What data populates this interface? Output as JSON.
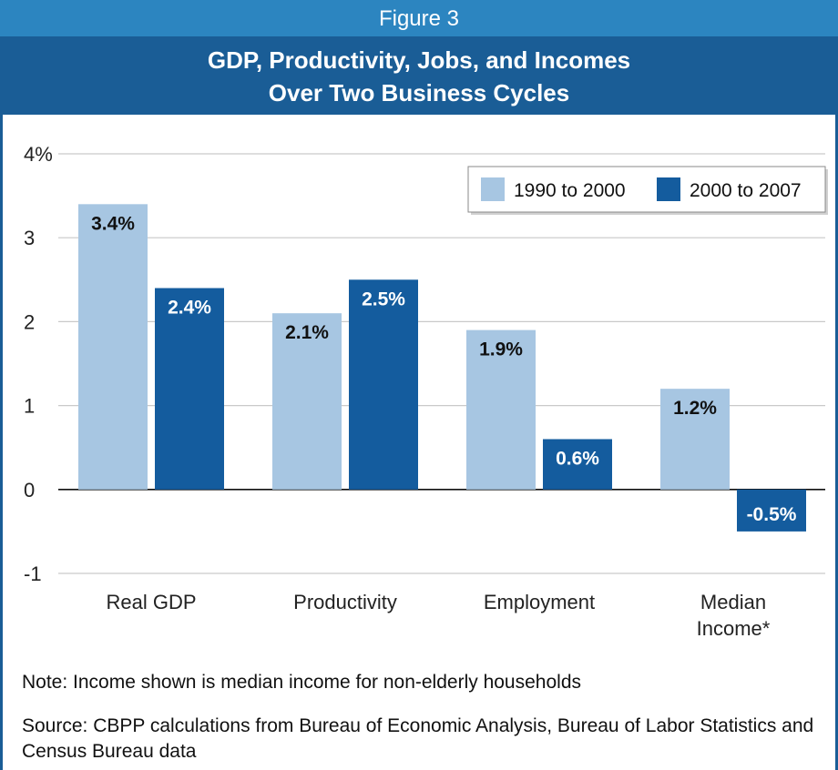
{
  "figure": {
    "number_label": "Figure 3",
    "title_line1": "GDP, Productivity, Jobs, and Incomes",
    "title_line2": "Over Two Business Cycles"
  },
  "chart_data": {
    "type": "bar",
    "categories": [
      [
        "Real GDP"
      ],
      [
        "Productivity"
      ],
      [
        "Employment"
      ],
      [
        "Median",
        "Income*"
      ]
    ],
    "series": [
      {
        "name": "1990 to 2000",
        "values": [
          3.4,
          2.1,
          1.9,
          1.2
        ],
        "labels": [
          "3.4%",
          "2.1%",
          "1.9%",
          "1.2%"
        ],
        "color": "#a7c6e2",
        "label_color": "#111111"
      },
      {
        "name": "2000 to 2007",
        "values": [
          2.4,
          2.5,
          0.6,
          -0.5
        ],
        "labels": [
          "2.4%",
          "2.5%",
          "0.6%",
          "-0.5%"
        ],
        "color": "#145c9e",
        "label_color": "#ffffff"
      }
    ],
    "yticks": [
      "4%",
      "3",
      "2",
      "1",
      "0",
      "-1"
    ],
    "ytick_values": [
      4,
      3,
      2,
      1,
      0,
      -1
    ],
    "ylim": [
      -1,
      4
    ],
    "grid": true,
    "legend_position": "top-right"
  },
  "notes": {
    "note": "Note: Income shown is median income for non-elderly households",
    "source": "Source: CBPP calculations from Bureau of Economic Analysis, Bureau of Labor Statistics and Census Bureau data"
  }
}
